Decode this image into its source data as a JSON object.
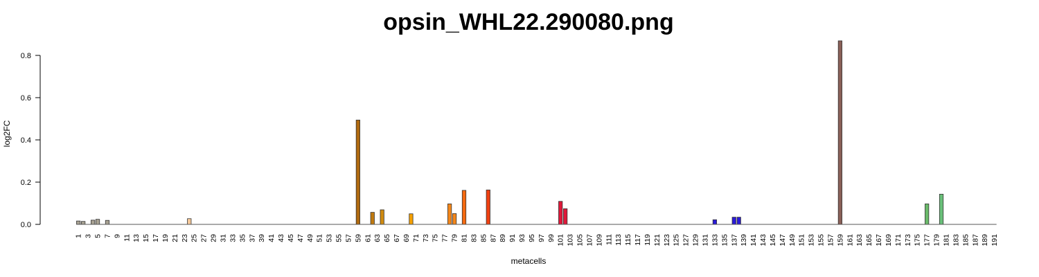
{
  "chart_data": {
    "type": "bar",
    "title": "opsin_WHL22.290080.png",
    "xlabel": "metacells",
    "ylabel": "log2FC",
    "ylim": [
      0,
      0.85
    ],
    "yticks": [
      "0.0",
      "0.2",
      "0.4",
      "0.6",
      "0.8"
    ],
    "n_categories": 191,
    "xtick_labels": [
      "1",
      "3",
      "5",
      "7",
      "9",
      "11",
      "13",
      "15",
      "17",
      "19",
      "21",
      "23",
      "25",
      "27",
      "29",
      "31",
      "33",
      "35",
      "37",
      "39",
      "41",
      "43",
      "45",
      "47",
      "49",
      "51",
      "53",
      "55",
      "57",
      "59",
      "61",
      "63",
      "65",
      "67",
      "69",
      "71",
      "73",
      "75",
      "77",
      "79",
      "81",
      "83",
      "85",
      "87",
      "89",
      "91",
      "93",
      "95",
      "97",
      "99",
      "101",
      "103",
      "105",
      "107",
      "109",
      "111",
      "113",
      "115",
      "117",
      "119",
      "121",
      "123",
      "125",
      "127",
      "129",
      "131",
      "133",
      "135",
      "137",
      "139",
      "141",
      "143",
      "145",
      "147",
      "149",
      "151",
      "153",
      "155",
      "157",
      "159",
      "161",
      "163",
      "165",
      "167",
      "169",
      "171",
      "173",
      "175",
      "177",
      "179",
      "181",
      "183",
      "185",
      "187",
      "189",
      "191"
    ],
    "nonzero_bars": [
      {
        "x": 1,
        "value": 0.016,
        "color": "#a8a293"
      },
      {
        "x": 2,
        "value": 0.014,
        "color": "#a8a293"
      },
      {
        "x": 4,
        "value": 0.02,
        "color": "#a8a293"
      },
      {
        "x": 5,
        "value": 0.024,
        "color": "#a8a293"
      },
      {
        "x": 7,
        "value": 0.019,
        "color": "#a8a293"
      },
      {
        "x": 24,
        "value": 0.027,
        "color": "#f6c99a"
      },
      {
        "x": 59,
        "value": 0.494,
        "color": "#b06a10"
      },
      {
        "x": 62,
        "value": 0.057,
        "color": "#c07a10"
      },
      {
        "x": 64,
        "value": 0.069,
        "color": "#cf8a10"
      },
      {
        "x": 70,
        "value": 0.05,
        "color": "#f5a000"
      },
      {
        "x": 78,
        "value": 0.097,
        "color": "#f5871a"
      },
      {
        "x": 79,
        "value": 0.051,
        "color": "#f5871a"
      },
      {
        "x": 81,
        "value": 0.161,
        "color": "#f56a10"
      },
      {
        "x": 86,
        "value": 0.163,
        "color": "#f04010"
      },
      {
        "x": 101,
        "value": 0.109,
        "color": "#e0183a"
      },
      {
        "x": 102,
        "value": 0.074,
        "color": "#e0183a"
      },
      {
        "x": 133,
        "value": 0.022,
        "color": "#2a1ad8"
      },
      {
        "x": 137,
        "value": 0.034,
        "color": "#2a1ad8"
      },
      {
        "x": 138,
        "value": 0.034,
        "color": "#2a1ad8"
      },
      {
        "x": 159,
        "value": 0.869,
        "color": "#8a6058"
      },
      {
        "x": 177,
        "value": 0.097,
        "color": "#6aba6a"
      },
      {
        "x": 180,
        "value": 0.143,
        "color": "#6ac07a"
      }
    ],
    "other_values": 0,
    "grid": false,
    "legend": "none"
  }
}
